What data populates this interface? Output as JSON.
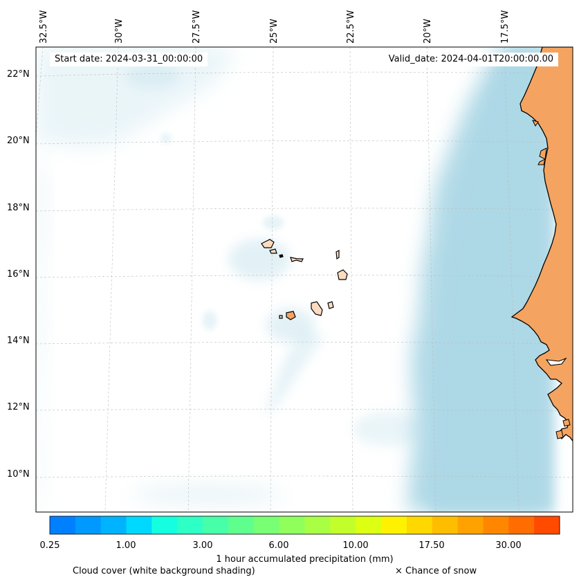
{
  "map": {
    "start_date": "Start date: 2024-03-31_00:00:00",
    "valid_date": "Valid_date: 2024-04-01T20:00:00.00",
    "lon_labels": [
      "32.5°W",
      "30°W",
      "27.5°W",
      "25°W",
      "22.5°W",
      "20°W",
      "17.5°W"
    ],
    "lat_labels": [
      "22°N",
      "20°N",
      "18°N",
      "16°N",
      "14°N",
      "12°N",
      "10°N"
    ],
    "land_color": "#f4a460",
    "island_color": "#fcdcc0",
    "cloud_color": "#add8e6",
    "ocean_color": "#ffffff"
  },
  "colorbar": {
    "label": "1 hour accumulated precipitation (mm)",
    "ticks": [
      "0.25",
      "1.00",
      "3.00",
      "6.00",
      "10.00",
      "17.50",
      "30.00"
    ],
    "colors": [
      "#0080ff",
      "#0099ff",
      "#00b3ff",
      "#00d9ff",
      "#14ffe0",
      "#2effc4",
      "#47ffa8",
      "#5fff8e",
      "#78ff74",
      "#90ff5c",
      "#a8ff44",
      "#c2ff2a",
      "#dcff12",
      "#fff200",
      "#ffd800",
      "#ffbd00",
      "#ffa200",
      "#ff8700",
      "#ff6c00",
      "#ff4a00"
    ]
  },
  "legend": {
    "cloud_cover": "Cloud cover (white background shading)",
    "snow": "× Chance of snow"
  }
}
